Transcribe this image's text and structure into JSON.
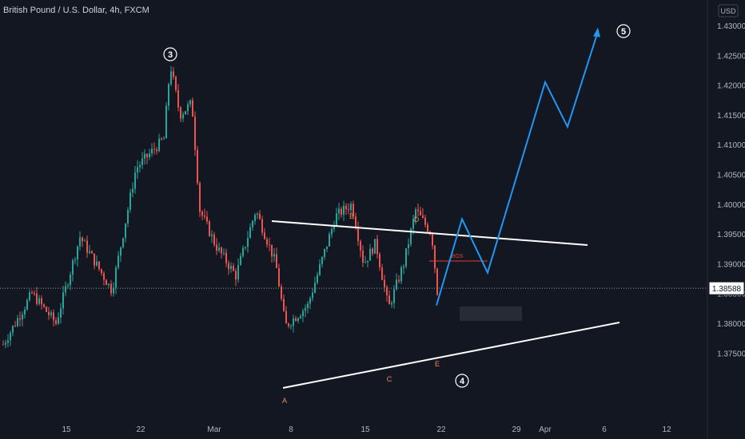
{
  "header": {
    "title": "British Pound / U.S. Dollar, 4h, FXCM"
  },
  "price_axis": {
    "currency_button": "USD",
    "ticks": [
      "1.43000",
      "1.42500",
      "1.42000",
      "1.41500",
      "1.41000",
      "1.40500",
      "1.40000",
      "1.39500",
      "1.39000",
      "1.38500",
      "1.38000",
      "1.37500"
    ],
    "current_price": "1.38588"
  },
  "time_axis": {
    "ticks": [
      "15",
      "22",
      "Mar",
      "8",
      "15",
      "22",
      "29",
      "Apr",
      "6",
      "12"
    ]
  },
  "colors": {
    "background": "#131722",
    "up_candle": "#26a69a",
    "down_candle": "#ef5350",
    "projection": "#2196f3",
    "trendline": "#ffffff",
    "wave_label": "#ef8a5a",
    "axis_text": "#b2b5be"
  },
  "chart_data": {
    "type": "candlestick",
    "symbol": "British Pound / U.S. Dollar",
    "timeframe": "4h",
    "source": "FXCM",
    "ylim": [
      1.372,
      1.4335
    ],
    "current_price": 1.38588,
    "annotations": {
      "wave_labels": [
        "3",
        "4",
        "5"
      ],
      "triangle_points": [
        "A",
        "B",
        "C",
        "D",
        "E"
      ],
      "bos_label": "BOS"
    },
    "key_points": [
      {
        "label": "A",
        "date": "Mar 8",
        "price": 1.378
      },
      {
        "label": "B",
        "date": "Mar 14",
        "price": 1.4008
      },
      {
        "label": "C",
        "date": "Mar 17",
        "price": 1.381
      },
      {
        "label": "D",
        "date": "Mar 19",
        "price": 1.4005
      },
      {
        "label": "E",
        "date": "Mar 21",
        "price": 1.383
      },
      {
        "label": "3",
        "date": "Feb 24",
        "price": 1.424
      }
    ],
    "projection_path": [
      {
        "date": "Mar 21",
        "price": 1.383
      },
      {
        "date": "Mar 23",
        "price": 1.3975
      },
      {
        "date": "Mar 26",
        "price": 1.3885
      },
      {
        "date": "Apr 1",
        "price": 1.4205
      },
      {
        "date": "Apr 3",
        "price": 1.413
      },
      {
        "date": "Apr 5",
        "price": 1.429
      }
    ]
  }
}
